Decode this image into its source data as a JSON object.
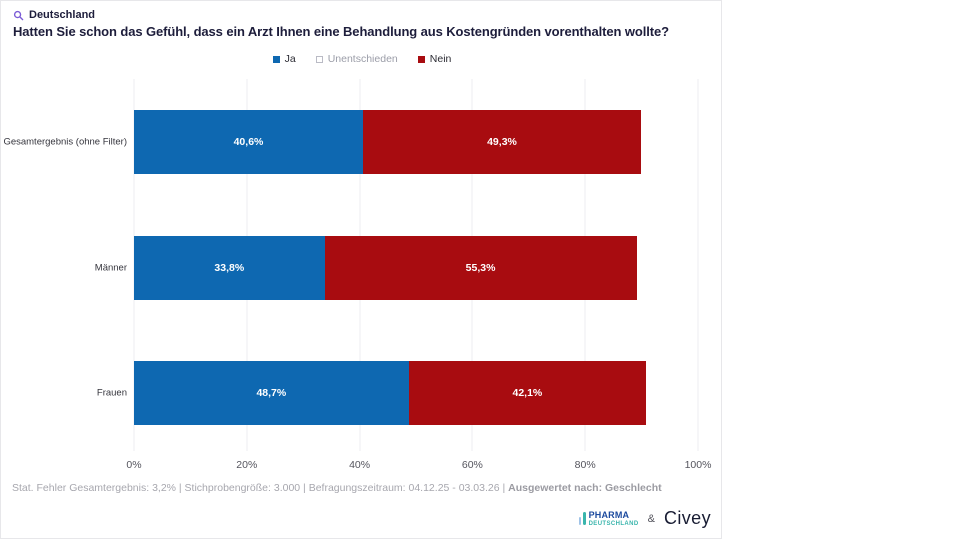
{
  "header": {
    "region": "Deutschland",
    "region_icon_color": "#7b5cd6",
    "title": "Hatten Sie schon das Gefühl, dass ein Arzt Ihnen eine Behandlung aus Kostengründen vorenthalten wollte?"
  },
  "legend": {
    "position": "top-center",
    "items": [
      {
        "label": "Ja",
        "marker_color": "#0e68b1",
        "marker_border": "#0e68b1",
        "text_color": "#2b2b33"
      },
      {
        "label": "Unentschieden",
        "marker_color": "#ffffff",
        "marker_border": "#babbc5",
        "text_color": "#9b9da8"
      },
      {
        "label": "Nein",
        "marker_color": "#a80c10",
        "marker_border": "#a80c10",
        "text_color": "#2b2b33"
      }
    ]
  },
  "chart_data": {
    "type": "bar",
    "orientation": "horizontal",
    "stacked": true,
    "categories": [
      "Gesamtergebnis (ohne Filter)",
      "Männer",
      "Frauen"
    ],
    "series": [
      {
        "name": "Ja",
        "color": "#0e68b1",
        "values": [
          40.6,
          33.8,
          48.7
        ],
        "labels": [
          "40,6%",
          "33,8%",
          "48,7%"
        ]
      },
      {
        "name": "Nein",
        "color": "#a80c10",
        "values": [
          49.3,
          55.3,
          42.1
        ],
        "labels": [
          "49,3%",
          "55,3%",
          "42,1%"
        ]
      },
      {
        "name": "Unentschieden",
        "color": "#ffffff",
        "values": [
          10.1,
          10.9,
          9.2
        ],
        "labels": [
          "",
          "",
          ""
        ],
        "hidden": true,
        "note": "not labeled in chart; remainder to 100%"
      }
    ],
    "x_ticks": [
      "0%",
      "20%",
      "40%",
      "60%",
      "80%",
      "100%"
    ],
    "xlim": [
      0,
      100
    ],
    "grid": true
  },
  "footer": {
    "stats": "Stat. Fehler Gesamtergebnis: 3,2% | Stichprobengröße: 3.000 | Befragungszeitraum: 04.12.25 - 03.03.26 | ",
    "evaluated": "Ausgewertet nach: Geschlecht"
  },
  "branding": {
    "pharma_line1": "PHARMA",
    "pharma_line2": "DEUTSCHLAND",
    "ampersand": "&",
    "civey": "Civey"
  }
}
